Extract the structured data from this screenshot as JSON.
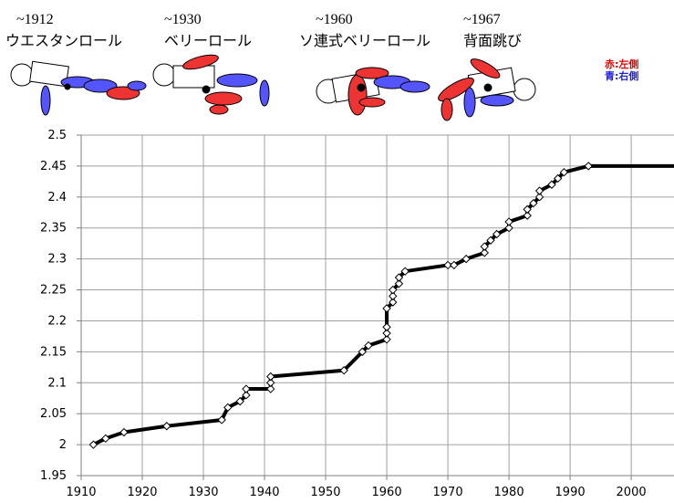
{
  "chart_data": {
    "type": "line",
    "annotations": [
      {
        "era": "~1912",
        "label": "ウエスタンロール"
      },
      {
        "era": "~1930",
        "label": "ベリーロール"
      },
      {
        "era": "~1960",
        "label": "ソ連式ベリーロール"
      },
      {
        "era": "~1967",
        "label": "背面跳び"
      }
    ],
    "legend_notes": [
      "赤:左側",
      "青:右側"
    ],
    "x": [
      1912,
      1914,
      1917,
      1924,
      1933,
      1934,
      1936,
      1937,
      1937,
      1941,
      1941,
      1941,
      1953,
      1956,
      1957,
      1960,
      1960,
      1960,
      1960,
      1961,
      1961,
      1961,
      1962,
      1962,
      1963,
      1970,
      1971,
      1973,
      1976,
      1976,
      1977,
      1978,
      1980,
      1980,
      1983,
      1983,
      1984,
      1985,
      1985,
      1987,
      1988,
      1989,
      1993
    ],
    "values": [
      2.0,
      2.01,
      2.02,
      2.03,
      2.04,
      2.06,
      2.07,
      2.08,
      2.09,
      2.09,
      2.1,
      2.11,
      2.12,
      2.15,
      2.16,
      2.17,
      2.18,
      2.19,
      2.22,
      2.23,
      2.24,
      2.25,
      2.26,
      2.27,
      2.28,
      2.29,
      2.29,
      2.3,
      2.31,
      2.32,
      2.33,
      2.34,
      2.35,
      2.36,
      2.37,
      2.38,
      2.39,
      2.4,
      2.41,
      2.42,
      2.43,
      2.44,
      2.45
    ],
    "color": "#000000",
    "line_extends_to_axis_end": true,
    "xlim": [
      1910,
      2007
    ],
    "xticks": [
      1910,
      1920,
      1930,
      1940,
      1950,
      1960,
      1970,
      1980,
      1990,
      2000
    ],
    "ylim": [
      1.95,
      2.5
    ],
    "yticks": [
      1.95,
      2,
      2.05,
      2.1,
      2.15,
      2.2,
      2.25,
      2.3,
      2.35,
      2.4,
      2.45,
      2.5
    ],
    "grid": true
  }
}
